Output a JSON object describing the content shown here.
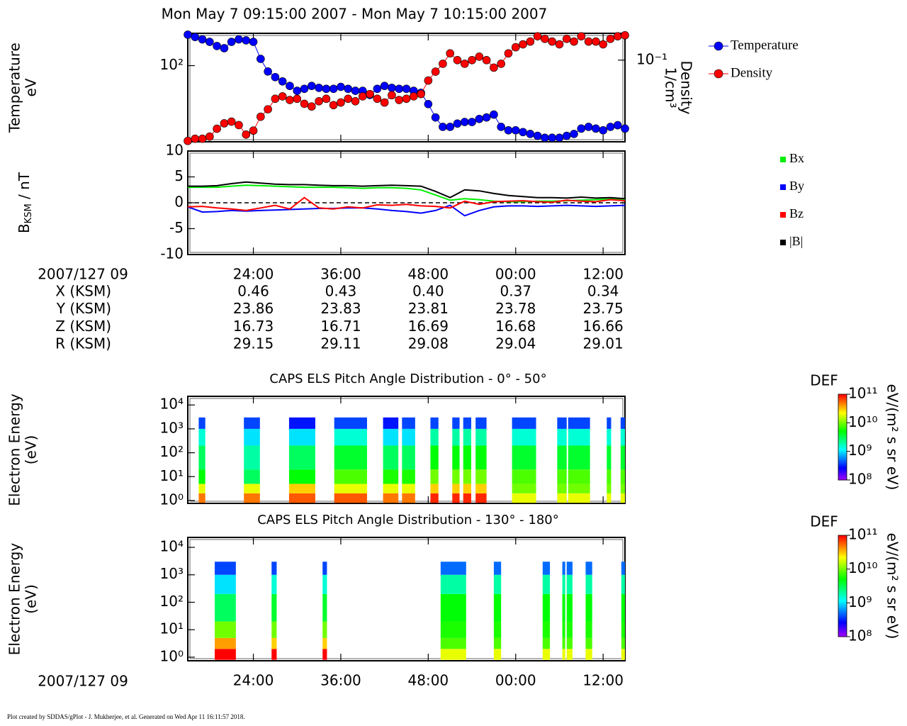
{
  "title": "Mon May 7 09:15:00 2007 - Mon May 7 10:15:00 2007",
  "footer": "Plot created by SDDAS/gPlot - J. Mukherjee, et al.  Generated on Wed Apr 11 16:11:57 2018.",
  "ephemeris": {
    "label": "2007/127 09",
    "rows": [
      {
        "name": "X (KSM)",
        "values": [
          "0.46",
          "0.43",
          "0.40",
          "0.37",
          "0.34"
        ]
      },
      {
        "name": "Y (KSM)",
        "values": [
          "23.86",
          "23.83",
          "23.81",
          "23.78",
          "23.75"
        ]
      },
      {
        "name": "Z (KSM)",
        "values": [
          "16.73",
          "16.71",
          "16.69",
          "16.68",
          "16.66"
        ]
      },
      {
        "name": "R (KSM)",
        "values": [
          "29.15",
          "29.11",
          "29.08",
          "29.04",
          "29.01"
        ]
      }
    ]
  },
  "xaxis_label": "2007/127 09",
  "chart_data": [
    {
      "type": "line",
      "ylabel": [
        "Temperature",
        "eV"
      ],
      "y2label": [
        "Density",
        "1/cm³"
      ],
      "xlim": [
        15,
        75
      ],
      "xticks": [
        {
          "value": 24,
          "label": "24:00"
        },
        {
          "value": 36,
          "label": "36:00"
        },
        {
          "value": 48,
          "label": "48:00"
        },
        {
          "value": 60,
          "label": "00:00"
        },
        {
          "value": 72,
          "label": "12:00"
        }
      ],
      "xtick_labels": false,
      "ylog": true,
      "ylim": [
        34,
        158
      ],
      "yticks": [
        {
          "value": 100,
          "label": "10²"
        }
      ],
      "y2log": true,
      "y2lim": [
        0.0316,
        0.146
      ],
      "y2ticks": [
        {
          "value": 0.1,
          "label": "10⁻¹"
        }
      ],
      "markers": true,
      "legend": "upper right",
      "series": [
        {
          "name": "Temperature",
          "color": "#0000ff",
          "x": [
            15,
            16,
            17,
            18,
            19,
            20,
            21,
            22,
            23,
            24,
            25,
            26,
            27,
            28,
            29,
            30,
            31,
            32,
            33,
            34,
            35,
            36,
            37,
            38,
            39,
            40,
            41,
            42,
            43,
            44,
            45,
            46,
            47,
            48,
            49,
            50,
            51,
            52,
            53,
            54,
            55,
            56,
            57,
            58,
            59,
            60,
            61,
            62,
            63,
            64,
            65,
            66,
            67,
            68,
            69,
            70,
            71,
            72,
            73,
            74,
            75
          ],
          "values": [
            155,
            150,
            145,
            140,
            132,
            128,
            140,
            145,
            143,
            140,
            110,
            92,
            85,
            80,
            75,
            70,
            72,
            75,
            73,
            72,
            72,
            74,
            72,
            70,
            70,
            66,
            72,
            75,
            73,
            72,
            72,
            70,
            68,
            58,
            48,
            42,
            42,
            44,
            45,
            45,
            47,
            48,
            50,
            42,
            40,
            40,
            39,
            38,
            37,
            36,
            36,
            36,
            37,
            38,
            41,
            42,
            41,
            40,
            42,
            43,
            41
          ]
        },
        {
          "name": "Density",
          "color": "#ff0000",
          "axis": "y2",
          "x": [
            15,
            16,
            17,
            18,
            19,
            20,
            21,
            22,
            23,
            24,
            25,
            26,
            27,
            28,
            29,
            30,
            31,
            32,
            33,
            34,
            35,
            36,
            37,
            38,
            39,
            40,
            41,
            42,
            43,
            44,
            45,
            46,
            47,
            48,
            49,
            50,
            51,
            52,
            53,
            54,
            55,
            56,
            57,
            58,
            59,
            60,
            61,
            62,
            63,
            64,
            65,
            66,
            67,
            68,
            69,
            70,
            71,
            72,
            73,
            74,
            75
          ],
          "values": [
            0.032,
            0.033,
            0.033,
            0.034,
            0.038,
            0.041,
            0.042,
            0.04,
            0.035,
            0.037,
            0.045,
            0.05,
            0.058,
            0.06,
            0.057,
            0.058,
            0.054,
            0.052,
            0.056,
            0.058,
            0.053,
            0.055,
            0.058,
            0.056,
            0.06,
            0.062,
            0.058,
            0.055,
            0.061,
            0.057,
            0.058,
            0.06,
            0.062,
            0.075,
            0.085,
            0.095,
            0.11,
            0.1,
            0.095,
            0.1,
            0.105,
            0.1,
            0.09,
            0.095,
            0.11,
            0.12,
            0.125,
            0.13,
            0.14,
            0.135,
            0.13,
            0.125,
            0.135,
            0.13,
            0.14,
            0.13,
            0.13,
            0.125,
            0.135,
            0.14,
            0.142
          ]
        }
      ]
    },
    {
      "type": "line",
      "ylabel": [
        "B",
        "KSM",
        " / nT"
      ],
      "xlim": [
        15,
        75
      ],
      "xticks": [
        {
          "value": 24,
          "label": "24:00"
        },
        {
          "value": 36,
          "label": "36:00"
        },
        {
          "value": 48,
          "label": "48:00"
        },
        {
          "value": 60,
          "label": "00:00"
        },
        {
          "value": 72,
          "label": "12:00"
        }
      ],
      "xtick_labels": true,
      "ylim": [
        -10,
        10
      ],
      "yticks": [
        -10,
        -5,
        0,
        5,
        10
      ],
      "zero_line": true,
      "legend": "right",
      "x": [
        15,
        17,
        19,
        21,
        23,
        25,
        27,
        29,
        31,
        33,
        35,
        37,
        39,
        41,
        43,
        45,
        47,
        49,
        51,
        53,
        55,
        57,
        59,
        61,
        63,
        65,
        67,
        69,
        71,
        73,
        75
      ],
      "series": [
        {
          "name": "Bx",
          "color": "#00ee00",
          "values": [
            3,
            3,
            3,
            3.2,
            3.4,
            3.3,
            3.2,
            3.1,
            3,
            3,
            3,
            2.9,
            2.8,
            2.9,
            2.9,
            2.8,
            2.5,
            1.5,
            0.5,
            0.8,
            0.6,
            0.3,
            0.2,
            0.2,
            0.3,
            0.3,
            0.4,
            0.5,
            0.6,
            0.7,
            0.7
          ]
        },
        {
          "name": "By",
          "color": "#0000ff",
          "values": [
            -0.8,
            -1.8,
            -1.7,
            -1.5,
            -1.6,
            -1.5,
            -1.4,
            -1.3,
            -1.2,
            -1.1,
            -1.1,
            -1,
            -1,
            -1.2,
            -1.5,
            -1.7,
            -2,
            -1.5,
            -0.5,
            -2.5,
            -1.5,
            -0.8,
            -0.6,
            -0.6,
            -0.7,
            -0.6,
            -0.5,
            -0.6,
            -0.7,
            -0.6,
            -0.5
          ]
        },
        {
          "name": "Bz",
          "color": "#ff0000",
          "values": [
            -0.8,
            -0.7,
            -1,
            -1.2,
            -1.5,
            -1,
            -0.5,
            -1.2,
            1,
            -1,
            -1.2,
            -0.8,
            -1,
            -0.4,
            -0.5,
            -0.3,
            -0.6,
            -0.7,
            -1,
            0.3,
            -0.3,
            0.2,
            0.3,
            0.4,
            0.2,
            0.1,
            0.5,
            0.3,
            0.2,
            0.6,
            0.4
          ]
        },
        {
          "name": "|B|",
          "color": "#000000",
          "values": [
            3.2,
            3.2,
            3.3,
            3.7,
            4,
            3.8,
            3.6,
            3.5,
            3.5,
            3.4,
            3.3,
            3.3,
            3.2,
            3.3,
            3.4,
            3.3,
            3.2,
            2.2,
            1,
            2.5,
            2.3,
            1.8,
            1.4,
            1.2,
            1,
            1,
            0.9,
            1.1,
            0.9,
            1,
            0.8
          ]
        }
      ]
    },
    {
      "type": "heatmap",
      "title": "CAPS ELS Pitch Angle Distribution - 0° - 50°",
      "ylabel": [
        "Electron Energy",
        "(eV)"
      ],
      "xlim": [
        15,
        75
      ],
      "xticks": [
        {
          "value": 24,
          "label": "24:00"
        },
        {
          "value": 36,
          "label": "36:00"
        },
        {
          "value": 48,
          "label": "48:00"
        },
        {
          "value": 60,
          "label": "00:00"
        },
        {
          "value": 72,
          "label": "12:00"
        }
      ],
      "xtick_labels": false,
      "ylog": true,
      "ylim": [
        0.76,
        23000
      ],
      "yticks": [
        {
          "value": 1,
          "label": "10⁰"
        },
        {
          "value": 10,
          "label": "10¹"
        },
        {
          "value": 100,
          "label": "10²"
        },
        {
          "value": 1000,
          "label": "10³"
        },
        {
          "value": 10000,
          "label": "10⁴"
        }
      ],
      "xbins": [
        15,
        16.5,
        17.4,
        22.7,
        24.9,
        28.9,
        32.5,
        35.1,
        39.6,
        41.8,
        43.9,
        44.4,
        46.2,
        48.3,
        49.4,
        51.3,
        52.3,
        52.8,
        53.9,
        54.5,
        56,
        59.5,
        62.8,
        65.7,
        67,
        67.2,
        70.2,
        72.5,
        73.1,
        74.4,
        75
      ],
      "ybins": [
        0.8,
        2,
        5,
        20,
        200,
        1000,
        3000
      ],
      "values": [
        null,
        [
          50000000000.0,
          20000000000.0,
          5000000000.0,
          3000000000.0,
          1500000000.0,
          400000000.0
        ],
        null,
        [
          50000000000.0,
          20000000000.0,
          3000000000.0,
          2000000000.0,
          1000000000.0,
          400000000.0
        ],
        null,
        [
          60000000000.0,
          30000000000.0,
          5000000000.0,
          3000000000.0,
          1000000000.0,
          300000000.0
        ],
        null,
        [
          60000000000.0,
          20000000000.0,
          8000000000.0,
          4000000000.0,
          1500000000.0,
          400000000.0
        ],
        null,
        [
          50000000000.0,
          20000000000.0,
          6000000000.0,
          3000000000.0,
          1000000000.0,
          300000000.0
        ],
        null,
        [
          50000000000.0,
          20000000000.0,
          6000000000.0,
          3000000000.0,
          1000000000.0,
          400000000.0
        ],
        null,
        [
          80000000000.0,
          30000000000.0,
          10000000000.0,
          5000000000.0,
          2000000000.0,
          400000000.0
        ],
        null,
        [
          80000000000.0,
          30000000000.0,
          10000000000.0,
          5000000000.0,
          2000000000.0,
          400000000.0
        ],
        null,
        [
          80000000000.0,
          30000000000.0,
          10000000000.0,
          5000000000.0,
          2000000000.0,
          400000000.0
        ],
        null,
        [
          80000000000.0,
          30000000000.0,
          10000000000.0,
          5000000000.0,
          2000000000.0,
          400000000.0
        ],
        null,
        [
          20000000000.0,
          10000000000.0,
          8000000000.0,
          4000000000.0,
          1500000000.0,
          400000000.0
        ],
        null,
        [
          20000000000.0,
          10000000000.0,
          8000000000.0,
          4000000000.0,
          1500000000.0,
          400000000.0
        ],
        null,
        [
          20000000000.0,
          10000000000.0,
          8000000000.0,
          4000000000.0,
          1500000000.0,
          400000000.0
        ],
        null,
        [
          20000000000.0,
          10000000000.0,
          8000000000.0,
          4000000000.0,
          1500000000.0,
          400000000.0
        ],
        null,
        [
          20000000000.0,
          10000000000.0,
          8000000000.0,
          4000000000.0,
          1500000000.0,
          400000000.0
        ]
      ],
      "zlog": true,
      "zlim": [
        100000000.0,
        100000000000.0
      ],
      "zticks": [
        {
          "value": 100000000.0,
          "label": "10⁸"
        },
        {
          "value": 1000000000.0,
          "label": "10⁹"
        },
        {
          "value": 10000000000.0,
          "label": "10¹⁰"
        },
        {
          "value": 100000000000.0,
          "label": "10¹¹"
        }
      ],
      "colorbar_title": "DEF",
      "colorbar_label": "eV/(m² s sr eV)"
    },
    {
      "type": "heatmap",
      "title": "CAPS ELS Pitch Angle Distribution - 130° - 180°",
      "ylabel": [
        "Electron Energy",
        "(eV)"
      ],
      "xlim": [
        15,
        75
      ],
      "xticks": [
        {
          "value": 24,
          "label": "24:00"
        },
        {
          "value": 36,
          "label": "36:00"
        },
        {
          "value": 48,
          "label": "48:00"
        },
        {
          "value": 60,
          "label": "00:00"
        },
        {
          "value": 72,
          "label": "12:00"
        }
      ],
      "xtick_labels": true,
      "ylog": true,
      "ylim": [
        0.74,
        23000
      ],
      "yticks": [
        {
          "value": 1,
          "label": "10⁰"
        },
        {
          "value": 10,
          "label": "10¹"
        },
        {
          "value": 100,
          "label": "10²"
        },
        {
          "value": 1000,
          "label": "10³"
        },
        {
          "value": 10000,
          "label": "10⁴"
        }
      ],
      "xbins": [
        15,
        18.7,
        21.6,
        26.5,
        27.2,
        33.5,
        34.1,
        49.7,
        53.2,
        57,
        58,
        63.7,
        64.7,
        66.4,
        66.8,
        67,
        67.8,
        69.6,
        70.5,
        74.5,
        75
      ],
      "ybins": [
        0.8,
        2,
        5,
        20,
        200,
        1000,
        3000
      ],
      "values": [
        null,
        [
          100000000000.0,
          40000000000.0,
          10000000000.0,
          3000000000.0,
          1000000000.0,
          400000000.0
        ],
        null,
        [
          100000000000.0,
          30000000000.0,
          10000000000.0,
          4000000000.0,
          1500000000.0,
          400000000.0
        ],
        null,
        [
          100000000000.0,
          30000000000.0,
          10000000000.0,
          4000000000.0,
          1500000000.0,
          400000000.0
        ],
        null,
        [
          20000000000.0,
          8000000000.0,
          6000000000.0,
          5000000000.0,
          2000000000.0,
          500000000.0
        ],
        null,
        [
          20000000000.0,
          8000000000.0,
          6000000000.0,
          5000000000.0,
          2000000000.0,
          500000000.0
        ],
        null,
        [
          20000000000.0,
          8000000000.0,
          6000000000.0,
          5000000000.0,
          2000000000.0,
          500000000.0
        ],
        null,
        [
          20000000000.0,
          8000000000.0,
          6000000000.0,
          5000000000.0,
          2000000000.0,
          500000000.0
        ],
        null,
        [
          20000000000.0,
          8000000000.0,
          6000000000.0,
          5000000000.0,
          2000000000.0,
          500000000.0
        ],
        null,
        [
          20000000000.0,
          8000000000.0,
          6000000000.0,
          5000000000.0,
          2000000000.0,
          500000000.0
        ],
        null,
        [
          20000000000.0,
          8000000000.0,
          6000000000.0,
          5000000000.0,
          2000000000.0,
          500000000.0
        ]
      ],
      "zlog": true,
      "zlim": [
        100000000.0,
        100000000000.0
      ],
      "zticks": [
        {
          "value": 100000000.0,
          "label": "10⁸"
        },
        {
          "value": 1000000000.0,
          "label": "10⁹"
        },
        {
          "value": 10000000000.0,
          "label": "10¹⁰"
        },
        {
          "value": 100000000000.0,
          "label": "10¹¹"
        }
      ],
      "colorbar_title": "DEF",
      "colorbar_label": "eV/(m² s sr eV)"
    }
  ]
}
